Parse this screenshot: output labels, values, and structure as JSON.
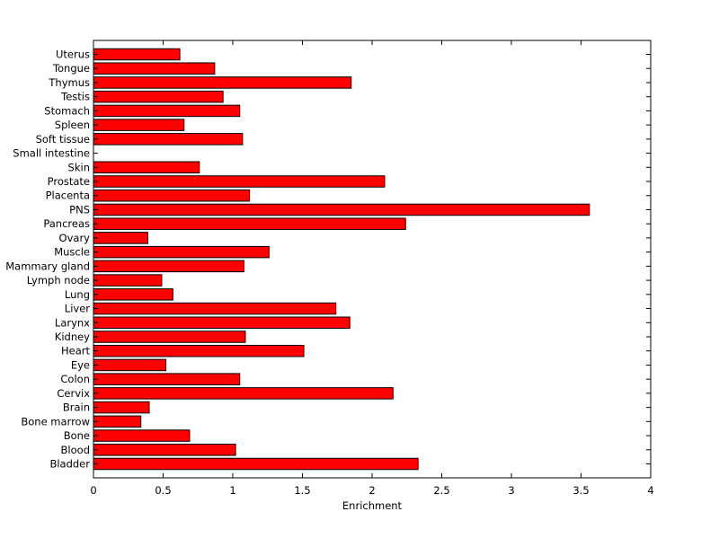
{
  "chart_data": {
    "type": "bar",
    "orientation": "horizontal",
    "categories": [
      "Bladder",
      "Blood",
      "Bone",
      "Bone marrow",
      "Brain",
      "Cervix",
      "Colon",
      "Eye",
      "Heart",
      "Kidney",
      "Larynx",
      "Liver",
      "Lung",
      "Lymph node",
      "Mammary gland",
      "Muscle",
      "Ovary",
      "Pancreas",
      "PNS",
      "Placenta",
      "Prostate",
      "Skin",
      "Small intestine",
      "Soft tissue",
      "Spleen",
      "Stomach",
      "Testis",
      "Thymus",
      "Tongue",
      "Uterus"
    ],
    "values": [
      2.33,
      1.02,
      0.69,
      0.34,
      0.4,
      2.15,
      1.05,
      0.52,
      1.51,
      1.09,
      1.84,
      1.74,
      0.57,
      0.49,
      1.08,
      1.26,
      0.39,
      2.24,
      3.56,
      1.12,
      2.09,
      0.76,
      0.0,
      1.07,
      0.65,
      1.05,
      0.93,
      1.85,
      0.87,
      0.62
    ],
    "xlabel": "Enrichment",
    "ylabel": "",
    "xlim": [
      0,
      4
    ],
    "x_ticks": [
      "0",
      "0.5",
      "1",
      "1.5",
      "2",
      "2.5",
      "3",
      "3.5",
      "4"
    ],
    "x_tick_values": [
      0,
      0.5,
      1,
      1.5,
      2,
      2.5,
      3,
      3.5,
      4
    ],
    "grid": false,
    "legend": "none",
    "bar_color": "#ff0000",
    "edge_color": "#000000"
  }
}
